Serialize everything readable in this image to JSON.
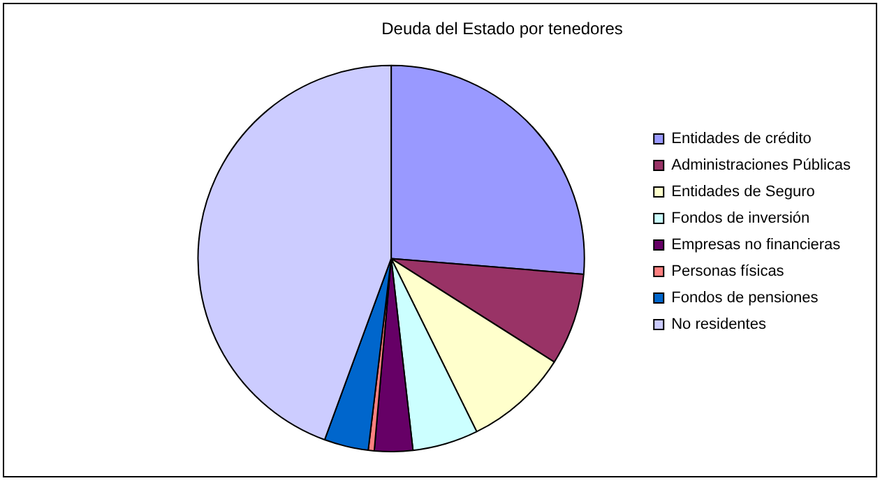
{
  "chart_data": {
    "type": "pie",
    "title": "Deuda del Estado por tenedores",
    "categories": [
      "Entidades de crédito",
      "Administraciones Públicas",
      "Entidades de Seguro",
      "Fondos de inversión",
      "Empresas no financieras",
      "Personas físicas",
      "Fondos de pensiones",
      "No residentes"
    ],
    "values": [
      26.3,
      7.7,
      8.7,
      5.5,
      3.2,
      0.5,
      3.7,
      44.4
    ],
    "colors": [
      "#9999ff",
      "#993366",
      "#ffffcc",
      "#ccffff",
      "#660066",
      "#ff8080",
      "#0066cc",
      "#ccccff"
    ],
    "legend": "right"
  }
}
